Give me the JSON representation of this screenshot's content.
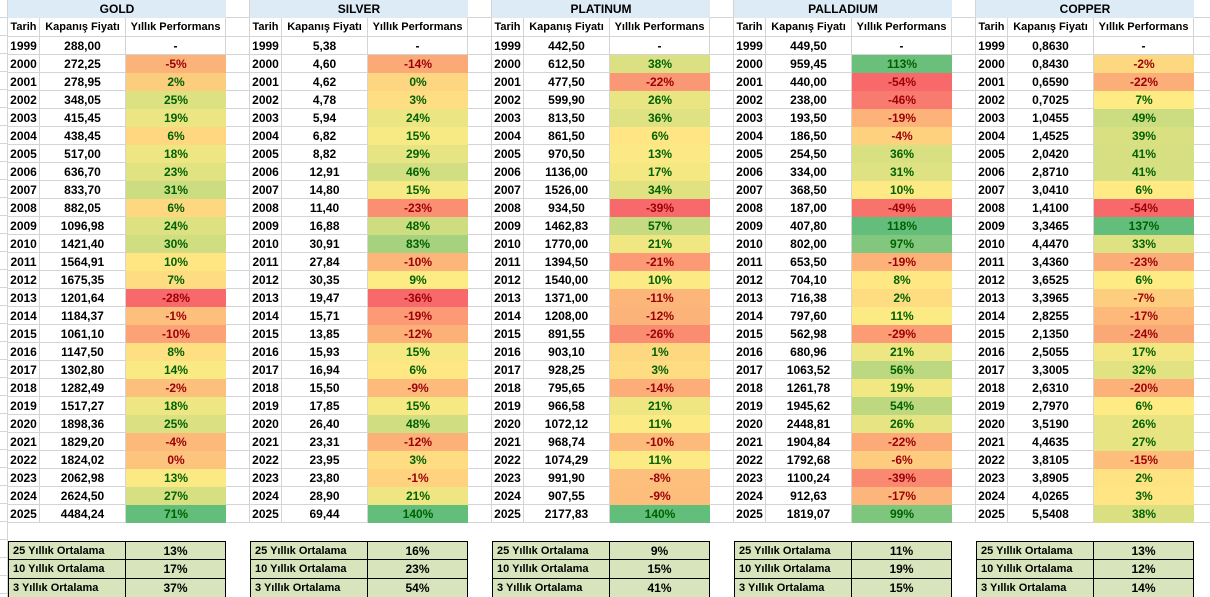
{
  "columns": {
    "date": "Tarih",
    "price": "Kapanış Fiyatı",
    "performance": "Yıllık Performans"
  },
  "years": [
    1999,
    2000,
    2001,
    2002,
    2003,
    2004,
    2005,
    2006,
    2007,
    2008,
    2009,
    2010,
    2011,
    2012,
    2013,
    2014,
    2015,
    2016,
    2017,
    2018,
    2019,
    2020,
    2021,
    2022,
    2023,
    2024,
    2025
  ],
  "summary_labels": [
    "25 Yıllık Ortalama",
    "10 Yıllık Ortalama",
    "3 Yıllık Ortalama"
  ],
  "colors": {
    "title_bg": "#DDEBF7",
    "summary_bg": "#D8E4BC",
    "gridline": "#D4D4D4",
    "neg_text": "#9C0006",
    "pos_text": "#006100",
    "scale_min": "#F8696B",
    "scale_mid": "#FFEB84",
    "scale_max": "#63BE7B"
  },
  "tables": [
    {
      "name": "GOLD",
      "prices": [
        "288,00",
        "272,25",
        "278,95",
        "348,05",
        "415,45",
        "438,45",
        "517,00",
        "636,70",
        "833,70",
        "882,05",
        "1096,98",
        "1421,40",
        "1564,91",
        "1675,35",
        "1201,64",
        "1184,37",
        "1061,10",
        "1147,50",
        "1302,80",
        "1282,49",
        "1517,27",
        "1898,36",
        "1829,20",
        "1824,02",
        "2062,98",
        "2624,50",
        "4484,24"
      ],
      "perf": [
        "-",
        "-5%",
        "2%",
        "25%",
        "19%",
        "6%",
        "18%",
        "23%",
        "31%",
        "6%",
        "24%",
        "30%",
        "10%",
        "7%",
        "-28%",
        "-1%",
        "-10%",
        "8%",
        "14%",
        "-2%",
        "18%",
        "25%",
        "-4%",
        "0%",
        "13%",
        "27%",
        "71%"
      ],
      "summary": [
        "13%",
        "17%",
        "37%"
      ]
    },
    {
      "name": "SILVER",
      "prices": [
        "5,38",
        "4,60",
        "4,62",
        "4,78",
        "5,94",
        "6,82",
        "8,82",
        "12,91",
        "14,80",
        "11,40",
        "16,88",
        "30,91",
        "27,84",
        "30,35",
        "19,47",
        "15,71",
        "13,85",
        "15,93",
        "16,94",
        "15,50",
        "17,85",
        "26,40",
        "23,31",
        "23,95",
        "23,80",
        "28,90",
        "69,44"
      ],
      "perf": [
        "-",
        "-14%",
        "0%",
        "3%",
        "24%",
        "15%",
        "29%",
        "46%",
        "15%",
        "-23%",
        "48%",
        "83%",
        "-10%",
        "9%",
        "-36%",
        "-19%",
        "-12%",
        "15%",
        "6%",
        "-9%",
        "15%",
        "48%",
        "-12%",
        "3%",
        "-1%",
        "21%",
        "140%"
      ],
      "summary": [
        "16%",
        "23%",
        "54%"
      ]
    },
    {
      "name": "PLATINUM",
      "prices": [
        "442,50",
        "612,50",
        "477,50",
        "599,90",
        "813,50",
        "861,50",
        "970,50",
        "1136,00",
        "1526,00",
        "934,50",
        "1462,83",
        "1770,00",
        "1394,50",
        "1540,00",
        "1371,00",
        "1208,00",
        "891,55",
        "903,10",
        "928,25",
        "795,65",
        "966,58",
        "1072,12",
        "968,74",
        "1074,29",
        "991,90",
        "907,55",
        "2177,83"
      ],
      "perf": [
        "-",
        "38%",
        "-22%",
        "26%",
        "36%",
        "6%",
        "13%",
        "17%",
        "34%",
        "-39%",
        "57%",
        "21%",
        "-21%",
        "10%",
        "-11%",
        "-12%",
        "-26%",
        "1%",
        "3%",
        "-14%",
        "21%",
        "11%",
        "-10%",
        "11%",
        "-8%",
        "-9%",
        "140%"
      ],
      "summary": [
        "9%",
        "15%",
        "41%"
      ]
    },
    {
      "name": "PALLADIUM",
      "prices": [
        "449,50",
        "959,45",
        "440,00",
        "238,00",
        "193,50",
        "186,50",
        "254,50",
        "334,00",
        "368,50",
        "187,00",
        "407,80",
        "802,00",
        "653,50",
        "704,10",
        "716,38",
        "797,60",
        "562,98",
        "680,96",
        "1063,52",
        "1261,78",
        "1945,62",
        "2448,81",
        "1904,84",
        "1792,68",
        "1100,24",
        "912,63",
        "1819,07"
      ],
      "perf": [
        "-",
        "113%",
        "-54%",
        "-46%",
        "-19%",
        "-4%",
        "36%",
        "31%",
        "10%",
        "-49%",
        "118%",
        "97%",
        "-19%",
        "8%",
        "2%",
        "11%",
        "-29%",
        "21%",
        "56%",
        "19%",
        "54%",
        "26%",
        "-22%",
        "-6%",
        "-39%",
        "-17%",
        "99%"
      ],
      "summary": [
        "11%",
        "19%",
        "15%"
      ]
    },
    {
      "name": "COPPER",
      "prices": [
        "0,8630",
        "0,8430",
        "0,6590",
        "0,7025",
        "1,0455",
        "1,4525",
        "2,0420",
        "2,8710",
        "3,0410",
        "1,4100",
        "3,3465",
        "4,4470",
        "3,4360",
        "3,6525",
        "3,3965",
        "2,8255",
        "2,1350",
        "2,5055",
        "3,3005",
        "2,6310",
        "2,7970",
        "3,5190",
        "4,4635",
        "3,8105",
        "3,8905",
        "4,0265",
        "5,5408"
      ],
      "perf": [
        "-",
        "-2%",
        "-22%",
        "7%",
        "49%",
        "39%",
        "41%",
        "41%",
        "6%",
        "-54%",
        "137%",
        "33%",
        "-23%",
        "6%",
        "-7%",
        "-17%",
        "-24%",
        "17%",
        "32%",
        "-20%",
        "6%",
        "26%",
        "27%",
        "-15%",
        "2%",
        "3%",
        "38%"
      ],
      "summary": [
        "13%",
        "12%",
        "14%"
      ]
    }
  ]
}
